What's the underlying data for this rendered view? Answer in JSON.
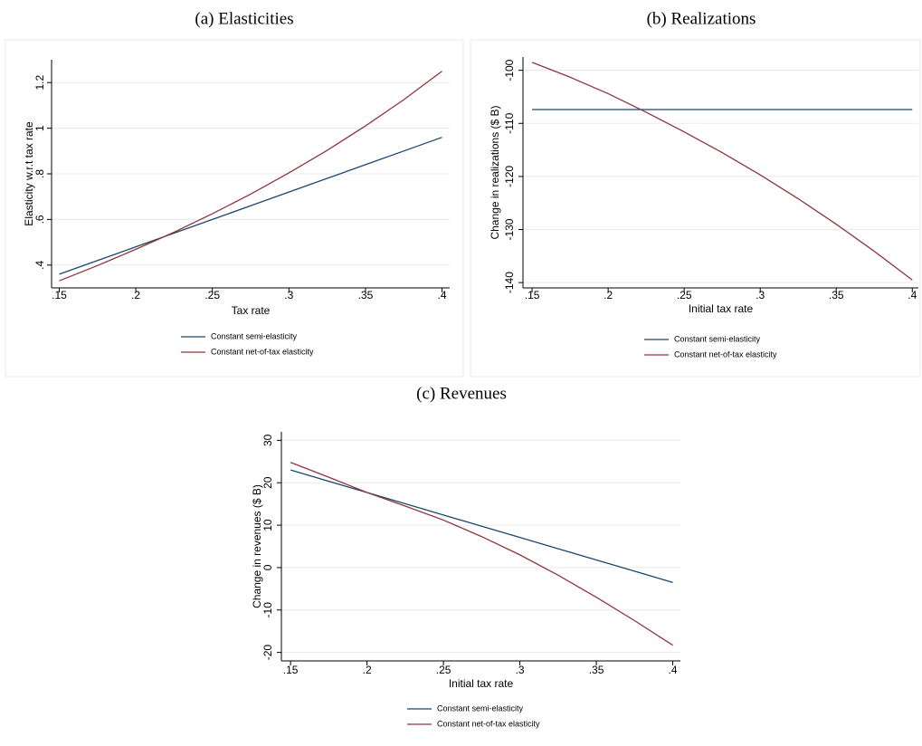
{
  "chart_data": [
    {
      "type": "line",
      "title": "(a) Elasticities",
      "xlabel": "Tax rate",
      "ylabel": "Elasticity w.r.t tax rate",
      "x": [
        0.15,
        0.175,
        0.2,
        0.225,
        0.25,
        0.275,
        0.3,
        0.325,
        0.35,
        0.375,
        0.4
      ],
      "series": [
        {
          "name": "Constant semi-elasticity",
          "color": "#1a476f",
          "values": [
            0.36,
            0.42,
            0.48,
            0.54,
            0.6,
            0.66,
            0.72,
            0.78,
            0.84,
            0.9,
            0.96
          ]
        },
        {
          "name": "Constant net-of-tax elasticity",
          "color": "#90353b",
          "values": [
            0.331,
            0.398,
            0.469,
            0.544,
            0.625,
            0.711,
            0.804,
            0.903,
            1.01,
            1.125,
            1.25
          ]
        }
      ],
      "xlim": [
        0.145,
        0.405
      ],
      "ylim": [
        0.3,
        1.3
      ],
      "xticks": [
        {
          "value": 0.15,
          "label": ".15"
        },
        {
          "value": 0.2,
          "label": ".2"
        },
        {
          "value": 0.25,
          "label": ".25"
        },
        {
          "value": 0.3,
          "label": ".3"
        },
        {
          "value": 0.35,
          "label": ".35"
        },
        {
          "value": 0.4,
          "label": ".4"
        }
      ],
      "yticks": [
        {
          "value": 0.4,
          "label": ".4"
        },
        {
          "value": 0.6,
          "label": ".6"
        },
        {
          "value": 0.8,
          "label": ".8"
        },
        1,
        1.2
      ],
      "grid": true
    },
    {
      "type": "line",
      "title": "(b) Realizations",
      "xlabel": "Initial tax rate",
      "ylabel": "Change in realizations ($ B)",
      "x": [
        0.15,
        0.175,
        0.2,
        0.225,
        0.25,
        0.275,
        0.3,
        0.325,
        0.35,
        0.375,
        0.4
      ],
      "series": [
        {
          "name": "Constant semi-elasticity",
          "color": "#1a476f",
          "values": [
            -107.4,
            -107.4,
            -107.4,
            -107.4,
            -107.4,
            -107.4,
            -107.4,
            -107.4,
            -107.4,
            -107.4,
            -107.4
          ]
        },
        {
          "name": "Constant net-of-tax elasticity",
          "color": "#90353b",
          "values": [
            -98.5,
            -101.3,
            -104.4,
            -107.9,
            -111.6,
            -115.5,
            -119.7,
            -124.2,
            -129,
            -134.1,
            -139.5
          ]
        }
      ],
      "xlim": [
        0.144,
        0.404
      ],
      "ylim": [
        -141,
        -97.5
      ],
      "xticks": [
        {
          "value": 0.15,
          "label": ".15"
        },
        {
          "value": 0.2,
          "label": ".2"
        },
        {
          "value": 0.25,
          "label": ".25"
        },
        {
          "value": 0.3,
          "label": ".3"
        },
        {
          "value": 0.35,
          "label": ".35"
        },
        {
          "value": 0.4,
          "label": ".4"
        }
      ],
      "yticks": [
        -140,
        -130,
        -120,
        -110,
        -100
      ],
      "grid": true
    },
    {
      "type": "line",
      "title": "(c) Revenues",
      "xlabel": "Initial tax rate",
      "ylabel": "Change in revenues ($ B)",
      "x": [
        0.15,
        0.175,
        0.2,
        0.225,
        0.25,
        0.275,
        0.3,
        0.325,
        0.35,
        0.375,
        0.4
      ],
      "series": [
        {
          "name": "Constant semi-elasticity",
          "color": "#1a476f",
          "values": [
            23,
            20.35,
            17.7,
            15.05,
            12.4,
            9.75,
            7.1,
            4.45,
            1.8,
            -0.85,
            -3.5
          ]
        },
        {
          "name": "Constant net-of-tax elasticity",
          "color": "#90353b",
          "values": [
            24.8,
            21.3,
            17.7,
            14.5,
            11.2,
            7.3,
            3,
            -1.8,
            -7,
            -12.5,
            -18.3
          ]
        }
      ],
      "xlim": [
        0.144,
        0.405
      ],
      "ylim": [
        -22,
        32
      ],
      "xticks": [
        {
          "value": 0.15,
          "label": ".15"
        },
        {
          "value": 0.2,
          "label": ".2"
        },
        {
          "value": 0.25,
          "label": ".25"
        },
        {
          "value": 0.3,
          "label": ".3"
        },
        {
          "value": 0.35,
          "label": ".35"
        },
        {
          "value": 0.4,
          "label": ".4"
        }
      ],
      "yticks": [
        -20,
        -10,
        0,
        10,
        20,
        30
      ],
      "grid": true
    }
  ]
}
